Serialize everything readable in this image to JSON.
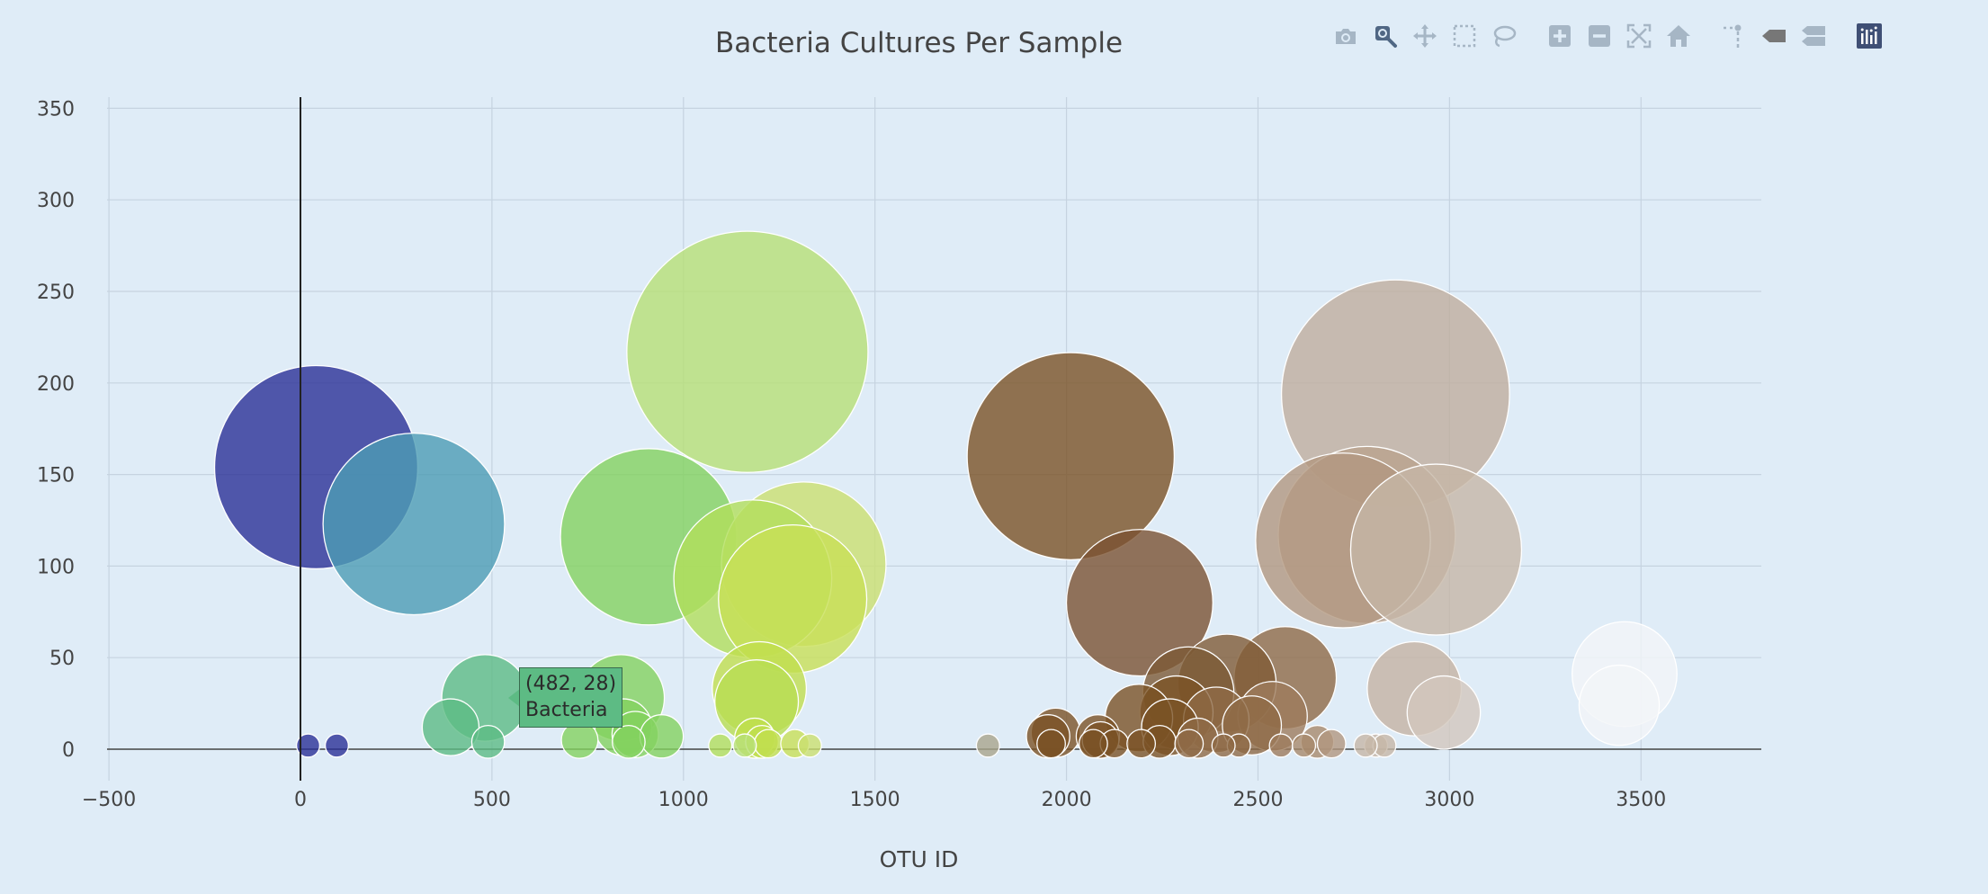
{
  "toolbar": {
    "buttons": [
      {
        "name": "camera-icon",
        "tooltip": "Download plot as a png"
      },
      {
        "name": "zoom-icon",
        "tooltip": "Zoom",
        "active": true
      },
      {
        "name": "pan-icon",
        "tooltip": "Pan"
      },
      {
        "name": "box-select-icon",
        "tooltip": "Box Select"
      },
      {
        "name": "lasso-select-icon",
        "tooltip": "Lasso Select"
      },
      {
        "name": "zoom-in-icon",
        "tooltip": "Zoom in"
      },
      {
        "name": "zoom-out-icon",
        "tooltip": "Zoom out"
      },
      {
        "name": "autoscale-icon",
        "tooltip": "Autoscale"
      },
      {
        "name": "home-icon",
        "tooltip": "Reset axes"
      },
      {
        "name": "spike-lines-icon",
        "tooltip": "Toggle Spike Lines"
      },
      {
        "name": "hover-closest-icon",
        "tooltip": "Show closest data on hover"
      },
      {
        "name": "hover-compare-icon",
        "tooltip": "Compare data on hover"
      },
      {
        "name": "plotly-logo-icon",
        "tooltip": "Produced with Plotly"
      }
    ]
  },
  "chart_data": {
    "type": "scatter",
    "title": "Bacteria Cultures Per Sample",
    "xlabel": "OTU ID",
    "ylabel": "",
    "xlim": [
      -500,
      3800
    ],
    "ylim": [
      -15,
      355
    ],
    "xticks": [
      -500,
      0,
      500,
      1000,
      1500,
      2000,
      2500,
      3000,
      3500
    ],
    "xtick_labels": [
      "−500",
      "0",
      "500",
      "1000",
      "1500",
      "2000",
      "2500",
      "3000",
      "3500"
    ],
    "yticks": [
      0,
      50,
      100,
      150,
      200,
      250,
      300,
      350
    ],
    "ytick_labels": [
      "0",
      "50",
      "100",
      "150",
      "200",
      "250",
      "300",
      "350"
    ],
    "grid": true,
    "legend": false,
    "marker": "bubble, size proportional to value",
    "points": [
      {
        "x": 41,
        "y": 154,
        "color": "#2b3196"
      },
      {
        "x": 296,
        "y": 123,
        "color": "#4c9cb4"
      },
      {
        "x": 1167,
        "y": 217,
        "color": "#b6e075"
      },
      {
        "x": 909,
        "y": 116,
        "color": "#83d25f"
      },
      {
        "x": 1181,
        "y": 93,
        "color": "#b2de5b"
      },
      {
        "x": 1314,
        "y": 101,
        "color": "#cbe06f"
      },
      {
        "x": 1285,
        "y": 82,
        "color": "#c8e056"
      },
      {
        "x": 2011,
        "y": 160,
        "color": "#7a5226"
      },
      {
        "x": 2191,
        "y": 80,
        "color": "#7a5232"
      },
      {
        "x": 2859,
        "y": 194,
        "color": "#bfae9d"
      },
      {
        "x": 2722,
        "y": 114,
        "color": "#b19780"
      },
      {
        "x": 2784,
        "y": 117,
        "color": "#b9a28d"
      },
      {
        "x": 2965,
        "y": 109,
        "color": "#c6b6a6"
      },
      {
        "x": 482,
        "y": 28,
        "color": "#5dbb84"
      },
      {
        "x": 392,
        "y": 12,
        "color": "#5dbb84"
      },
      {
        "x": 837,
        "y": 28,
        "color": "#83d25f"
      },
      {
        "x": 843,
        "y": 12,
        "color": "#83d25f"
      },
      {
        "x": 874,
        "y": 8,
        "color": "#83d25f"
      },
      {
        "x": 943,
        "y": 7,
        "color": "#83d25f"
      },
      {
        "x": 1198,
        "y": 33,
        "color": "#c0df4d"
      },
      {
        "x": 1191,
        "y": 26,
        "color": "#b8dd52"
      },
      {
        "x": 2318,
        "y": 31,
        "color": "#7c5a36"
      },
      {
        "x": 2419,
        "y": 36,
        "color": "#7f5b36"
      },
      {
        "x": 2571,
        "y": 39,
        "color": "#8e6a46"
      },
      {
        "x": 2189,
        "y": 17,
        "color": "#7a5226"
      },
      {
        "x": 2287,
        "y": 20,
        "color": "#7a5226"
      },
      {
        "x": 2270,
        "y": 12,
        "color": "#7a5226"
      },
      {
        "x": 2391,
        "y": 16,
        "color": "#8e6a46"
      },
      {
        "x": 2484,
        "y": 13,
        "color": "#8e6a46"
      },
      {
        "x": 2538,
        "y": 18,
        "color": "#9d7c5c"
      },
      {
        "x": 1972,
        "y": 9,
        "color": "#7a5226"
      },
      {
        "x": 1952,
        "y": 7,
        "color": "#7a5226"
      },
      {
        "x": 2082,
        "y": 7,
        "color": "#7a5226"
      },
      {
        "x": 2343,
        "y": 6,
        "color": "#8e6a46"
      },
      {
        "x": 2908,
        "y": 33,
        "color": "#c4b3a2"
      },
      {
        "x": 2985,
        "y": 20,
        "color": "#d2c7bd"
      },
      {
        "x": 3457,
        "y": 41,
        "color": "#f3f5f8"
      },
      {
        "x": 3443,
        "y": 24,
        "color": "#f3f5f8"
      },
      {
        "x": 490,
        "y": 4,
        "color": "#5dbb84"
      },
      {
        "x": 729,
        "y": 5,
        "color": "#83d25f"
      },
      {
        "x": 857,
        "y": 4,
        "color": "#83d25f"
      },
      {
        "x": 1186,
        "y": 6,
        "color": "#c0df4d"
      },
      {
        "x": 1205,
        "y": 4,
        "color": "#c0df4d"
      },
      {
        "x": 1222,
        "y": 3,
        "color": "#c0df4d"
      },
      {
        "x": 1291,
        "y": 3,
        "color": "#c8e056"
      },
      {
        "x": 1096,
        "y": 2,
        "color": "#b2de5b"
      },
      {
        "x": 2089,
        "y": 5,
        "color": "#7a5226"
      },
      {
        "x": 1960,
        "y": 3,
        "color": "#7a5226"
      },
      {
        "x": 2125,
        "y": 3,
        "color": "#7a5226"
      },
      {
        "x": 2243,
        "y": 4,
        "color": "#7a5226"
      },
      {
        "x": 2195,
        "y": 3,
        "color": "#7a5226"
      },
      {
        "x": 2070,
        "y": 3,
        "color": "#7a5226"
      },
      {
        "x": 2320,
        "y": 3,
        "color": "#8e6a46"
      },
      {
        "x": 2655,
        "y": 4,
        "color": "#a88a6c"
      },
      {
        "x": 2692,
        "y": 3,
        "color": "#b19780"
      },
      {
        "x": 2808,
        "y": 2,
        "color": "#c6b6a6"
      },
      {
        "x": 2830,
        "y": 2,
        "color": "#c6b6a6"
      },
      {
        "x": 2781,
        "y": 2,
        "color": "#c6b6a6"
      },
      {
        "x": 2450,
        "y": 2,
        "color": "#8e6a46"
      },
      {
        "x": 2560,
        "y": 2,
        "color": "#9d7c5c"
      },
      {
        "x": 2410,
        "y": 2,
        "color": "#8e6a46"
      },
      {
        "x": 1795,
        "y": 2,
        "color": "#a9a58c"
      },
      {
        "x": 1160,
        "y": 2,
        "color": "#b6e075"
      },
      {
        "x": 1330,
        "y": 2,
        "color": "#cbe06f"
      },
      {
        "x": 20,
        "y": 2,
        "color": "#2b3196"
      },
      {
        "x": 95,
        "y": 2,
        "color": "#2b3196"
      },
      {
        "x": 2620,
        "y": 2,
        "color": "#a88a6c"
      }
    ],
    "hover": {
      "x": 482,
      "y": 28,
      "coords": "(482, 28)",
      "label": "Bacteria",
      "color": "#5dbb84"
    },
    "colors": {
      "background": "#dfecf7",
      "grid": "#c6d3e0",
      "text": "#444444",
      "zeroline": "#444444",
      "spike": "#222222"
    }
  }
}
